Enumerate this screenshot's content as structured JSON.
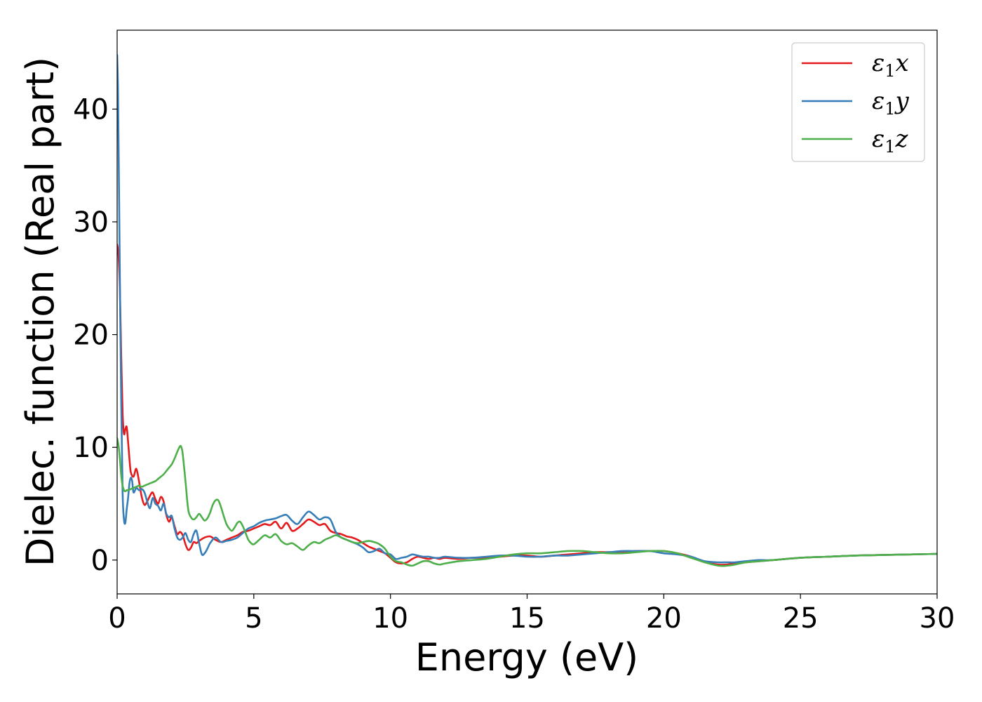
{
  "chart_data": {
    "type": "line",
    "title": "",
    "xlabel": "Energy (eV)",
    "ylabel": "Dielec. function (Real part)",
    "xlim": [
      0,
      30
    ],
    "ylim": [
      -3,
      47
    ],
    "xticks": [
      0,
      5,
      10,
      15,
      20,
      25,
      30
    ],
    "yticks": [
      0,
      10,
      20,
      30,
      40
    ],
    "xtick_labels": [
      "0",
      "5",
      "10",
      "15",
      "20",
      "25",
      "30"
    ],
    "ytick_labels": [
      "0",
      "10",
      "20",
      "30",
      "40"
    ],
    "grid": false,
    "legend": {
      "position": "top-right",
      "entries": [
        {
          "symbol": "ε",
          "subscript": "1",
          "axis": "x"
        },
        {
          "symbol": "ε",
          "subscript": "1",
          "axis": "y"
        },
        {
          "symbol": "ε",
          "subscript": "1",
          "axis": "z"
        }
      ]
    },
    "series": [
      {
        "name": "ε1x",
        "color": "#e41a1c",
        "x": [
          0,
          0.05,
          0.1,
          0.15,
          0.2,
          0.25,
          0.3,
          0.35,
          0.4,
          0.45,
          0.5,
          0.6,
          0.7,
          0.8,
          0.9,
          1.0,
          1.1,
          1.2,
          1.3,
          1.4,
          1.5,
          1.6,
          1.7,
          1.8,
          1.9,
          2.0,
          2.1,
          2.2,
          2.3,
          2.4,
          2.5,
          2.6,
          2.7,
          2.8,
          2.9,
          3.0,
          3.2,
          3.4,
          3.6,
          3.8,
          4.0,
          4.2,
          4.4,
          4.6,
          4.8,
          5.0,
          5.2,
          5.4,
          5.6,
          5.8,
          6.0,
          6.2,
          6.4,
          6.6,
          6.8,
          7.0,
          7.2,
          7.4,
          7.6,
          7.8,
          8.0,
          8.2,
          8.4,
          8.6,
          8.8,
          9.0,
          9.2,
          9.4,
          9.6,
          9.8,
          10.0,
          10.2,
          10.4,
          10.6,
          10.8,
          11.0,
          11.2,
          11.4,
          11.6,
          11.8,
          12.0,
          12.5,
          13.0,
          13.5,
          14.0,
          14.5,
          15.0,
          15.5,
          16.0,
          16.5,
          17.0,
          17.5,
          18.0,
          18.5,
          19.0,
          19.5,
          20.0,
          20.5,
          21.0,
          21.5,
          22.0,
          22.3,
          22.6,
          23.0,
          23.5,
          24.0,
          25.0,
          26.0,
          27.0,
          28.0,
          29.0,
          30.0
        ],
        "y": [
          28.0,
          27.0,
          24.0,
          18.0,
          13.0,
          11.2,
          11.6,
          11.8,
          10.5,
          9.0,
          7.8,
          7.4,
          8.1,
          7.0,
          5.6,
          4.9,
          5.2,
          5.7,
          6.0,
          5.4,
          5.0,
          5.6,
          5.2,
          4.0,
          3.4,
          3.8,
          3.0,
          2.3,
          2.5,
          2.2,
          1.4,
          0.9,
          1.1,
          1.6,
          1.5,
          1.7,
          2.0,
          2.1,
          1.8,
          1.6,
          1.8,
          2.0,
          2.2,
          2.5,
          2.6,
          2.8,
          3.0,
          3.2,
          3.1,
          3.4,
          2.8,
          3.3,
          2.6,
          2.8,
          3.2,
          3.6,
          3.4,
          3.1,
          3.2,
          2.6,
          2.4,
          2.3,
          2.1,
          2.0,
          1.8,
          1.5,
          1.2,
          1.0,
          0.8,
          0.6,
          0.2,
          -0.2,
          -0.3,
          -0.2,
          0.1,
          0.3,
          0.2,
          0.1,
          0.2,
          0.1,
          0.2,
          0.1,
          0.2,
          0.2,
          0.3,
          0.4,
          0.4,
          0.3,
          0.4,
          0.5,
          0.6,
          0.7,
          0.7,
          0.7,
          0.8,
          0.8,
          0.8,
          0.6,
          0.3,
          -0.2,
          -0.4,
          -0.4,
          -0.3,
          -0.2,
          -0.1,
          0.0,
          0.2,
          0.3,
          0.4,
          0.45,
          0.5,
          0.55
        ]
      },
      {
        "name": "ε1y",
        "color": "#377eb8",
        "x": [
          0,
          0.03,
          0.06,
          0.1,
          0.15,
          0.2,
          0.25,
          0.3,
          0.35,
          0.4,
          0.45,
          0.5,
          0.55,
          0.6,
          0.7,
          0.8,
          0.9,
          1.0,
          1.1,
          1.2,
          1.3,
          1.4,
          1.5,
          1.6,
          1.7,
          1.8,
          1.9,
          2.0,
          2.1,
          2.2,
          2.3,
          2.4,
          2.5,
          2.6,
          2.7,
          2.8,
          2.9,
          3.0,
          3.1,
          3.2,
          3.3,
          3.4,
          3.6,
          3.8,
          4.0,
          4.2,
          4.4,
          4.6,
          4.8,
          5.0,
          5.2,
          5.4,
          5.6,
          5.8,
          6.0,
          6.2,
          6.4,
          6.6,
          6.8,
          7.0,
          7.2,
          7.4,
          7.6,
          7.8,
          8.0,
          8.2,
          8.4,
          8.6,
          8.8,
          9.0,
          9.2,
          9.4,
          9.6,
          9.8,
          10.0,
          10.2,
          10.4,
          10.6,
          10.8,
          11.0,
          11.2,
          11.4,
          11.6,
          11.8,
          12.0,
          12.5,
          13.0,
          13.5,
          14.0,
          14.5,
          15.0,
          15.5,
          16.0,
          16.5,
          17.0,
          17.5,
          18.0,
          18.5,
          19.0,
          19.5,
          20.0,
          20.5,
          21.0,
          21.5,
          22.0,
          22.3,
          22.6,
          23.0,
          23.5,
          24.0,
          25.0,
          26.0,
          27.0,
          28.0,
          29.0,
          30.0
        ],
        "y": [
          44.8,
          42.0,
          35.0,
          25.0,
          14.0,
          6.0,
          3.6,
          3.3,
          4.5,
          5.5,
          6.8,
          7.3,
          7.0,
          6.0,
          6.4,
          6.2,
          6.3,
          6.0,
          5.2,
          4.6,
          5.5,
          5.0,
          4.8,
          4.4,
          5.0,
          4.1,
          3.8,
          3.9,
          2.8,
          2.0,
          1.8,
          2.0,
          2.4,
          1.8,
          1.6,
          2.3,
          2.6,
          1.5,
          0.5,
          0.6,
          1.0,
          1.5,
          2.0,
          1.6,
          1.7,
          1.8,
          2.0,
          2.4,
          2.8,
          3.0,
          3.3,
          3.5,
          3.6,
          3.7,
          3.9,
          4.0,
          3.5,
          3.2,
          3.8,
          4.3,
          4.0,
          3.6,
          3.8,
          3.6,
          2.5,
          2.0,
          1.8,
          1.6,
          1.4,
          1.1,
          0.7,
          0.8,
          1.0,
          0.6,
          0.5,
          0.1,
          0.2,
          0.3,
          0.5,
          0.4,
          0.3,
          0.3,
          0.2,
          0.2,
          0.3,
          0.2,
          0.2,
          0.3,
          0.4,
          0.4,
          0.3,
          0.3,
          0.4,
          0.4,
          0.5,
          0.6,
          0.7,
          0.8,
          0.8,
          0.8,
          0.6,
          0.5,
          0.3,
          -0.1,
          -0.2,
          -0.2,
          -0.2,
          -0.1,
          0.0,
          0.0,
          0.2,
          0.3,
          0.4,
          0.45,
          0.5,
          0.55
        ]
      },
      {
        "name": "ε1z",
        "color": "#4daf4a",
        "x": [
          0,
          0.05,
          0.1,
          0.15,
          0.2,
          0.25,
          0.3,
          0.35,
          0.4,
          0.5,
          0.6,
          0.7,
          0.8,
          0.9,
          1.0,
          1.1,
          1.2,
          1.3,
          1.4,
          1.5,
          1.6,
          1.7,
          1.8,
          1.9,
          2.0,
          2.1,
          2.2,
          2.3,
          2.35,
          2.4,
          2.5,
          2.6,
          2.7,
          2.8,
          2.9,
          3.0,
          3.1,
          3.2,
          3.3,
          3.4,
          3.5,
          3.6,
          3.7,
          3.8,
          3.9,
          4.0,
          4.1,
          4.2,
          4.3,
          4.4,
          4.5,
          4.6,
          4.7,
          4.8,
          4.9,
          5.0,
          5.2,
          5.4,
          5.6,
          5.8,
          6.0,
          6.2,
          6.4,
          6.6,
          6.8,
          7.0,
          7.2,
          7.4,
          7.6,
          7.8,
          8.0,
          8.2,
          8.4,
          8.6,
          8.8,
          9.0,
          9.2,
          9.4,
          9.6,
          9.8,
          10.0,
          10.2,
          10.4,
          10.6,
          10.8,
          11.0,
          11.2,
          11.4,
          11.6,
          11.8,
          12.0,
          12.5,
          13.0,
          13.5,
          14.0,
          14.5,
          15.0,
          15.5,
          16.0,
          16.5,
          17.0,
          17.5,
          18.0,
          18.5,
          19.0,
          19.5,
          20.0,
          20.5,
          21.0,
          21.5,
          22.0,
          22.3,
          22.6,
          23.0,
          23.5,
          24.0,
          25.0,
          26.0,
          27.0,
          28.0,
          29.0,
          30.0
        ],
        "y": [
          10.8,
          10.2,
          9.0,
          7.5,
          6.6,
          6.2,
          6.1,
          6.2,
          6.2,
          6.3,
          6.4,
          6.5,
          6.6,
          6.5,
          6.6,
          6.7,
          6.8,
          6.9,
          7.0,
          7.2,
          7.4,
          7.6,
          7.9,
          8.2,
          8.5,
          9.0,
          9.6,
          10.1,
          10.0,
          9.4,
          7.0,
          4.5,
          3.8,
          3.6,
          3.8,
          4.1,
          3.8,
          3.5,
          3.7,
          4.2,
          4.9,
          5.3,
          5.3,
          4.7,
          3.9,
          3.2,
          2.8,
          2.6,
          2.9,
          3.3,
          3.4,
          3.0,
          2.4,
          1.8,
          1.5,
          1.4,
          1.8,
          2.2,
          2.0,
          2.3,
          1.7,
          1.4,
          1.5,
          1.2,
          0.9,
          1.3,
          1.6,
          1.5,
          1.8,
          2.0,
          2.2,
          2.0,
          1.8,
          1.6,
          1.5,
          1.6,
          1.7,
          1.6,
          1.4,
          1.0,
          0.3,
          -0.1,
          -0.2,
          -0.4,
          -0.5,
          -0.3,
          -0.1,
          -0.1,
          -0.3,
          -0.4,
          -0.3,
          -0.1,
          0.0,
          0.1,
          0.3,
          0.5,
          0.6,
          0.6,
          0.7,
          0.8,
          0.8,
          0.7,
          0.6,
          0.6,
          0.7,
          0.8,
          0.8,
          0.6,
          0.2,
          -0.2,
          -0.5,
          -0.5,
          -0.4,
          -0.2,
          -0.1,
          0.0,
          0.2,
          0.3,
          0.4,
          0.45,
          0.5,
          0.55
        ]
      }
    ]
  }
}
